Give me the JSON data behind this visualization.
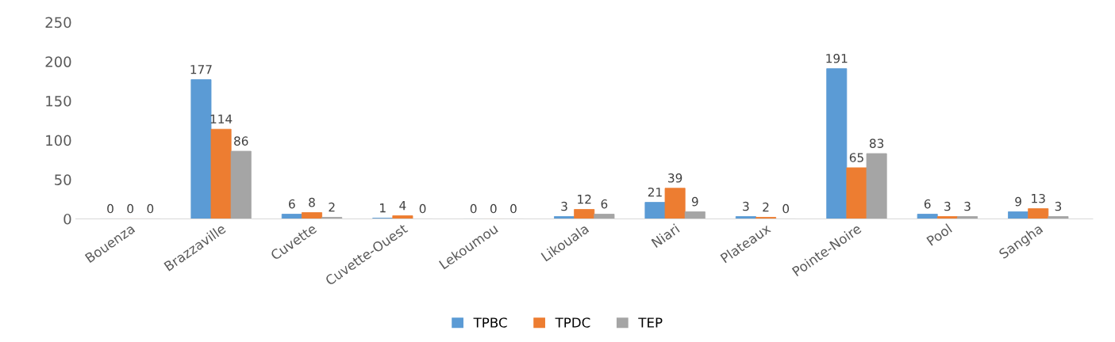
{
  "chart_data": {
    "type": "bar",
    "categories": [
      "Bouenza",
      "Brazzaville",
      "Cuvette",
      "Cuvette-Ouest",
      "Lekoumou",
      "Likouala",
      "Niari",
      "Plateaux",
      "Pointe-Noire",
      "Pool",
      "Sangha"
    ],
    "series": [
      {
        "name": "TPBC",
        "color": "#5b9bd5",
        "values": [
          0,
          177,
          6,
          1,
          0,
          3,
          21,
          3,
          191,
          6,
          9
        ]
      },
      {
        "name": "TPDC",
        "color": "#ed7d31",
        "values": [
          0,
          114,
          8,
          4,
          0,
          12,
          39,
          2,
          65,
          3,
          13
        ]
      },
      {
        "name": "TEP",
        "color": "#a5a5a5",
        "values": [
          0,
          86,
          2,
          0,
          0,
          6,
          9,
          0,
          83,
          3,
          3
        ]
      }
    ],
    "ylim": [
      0,
      250
    ],
    "yticks": [
      0,
      50,
      100,
      150,
      200,
      250
    ],
    "grid": false,
    "legend": "bottom",
    "data_labels": true
  }
}
